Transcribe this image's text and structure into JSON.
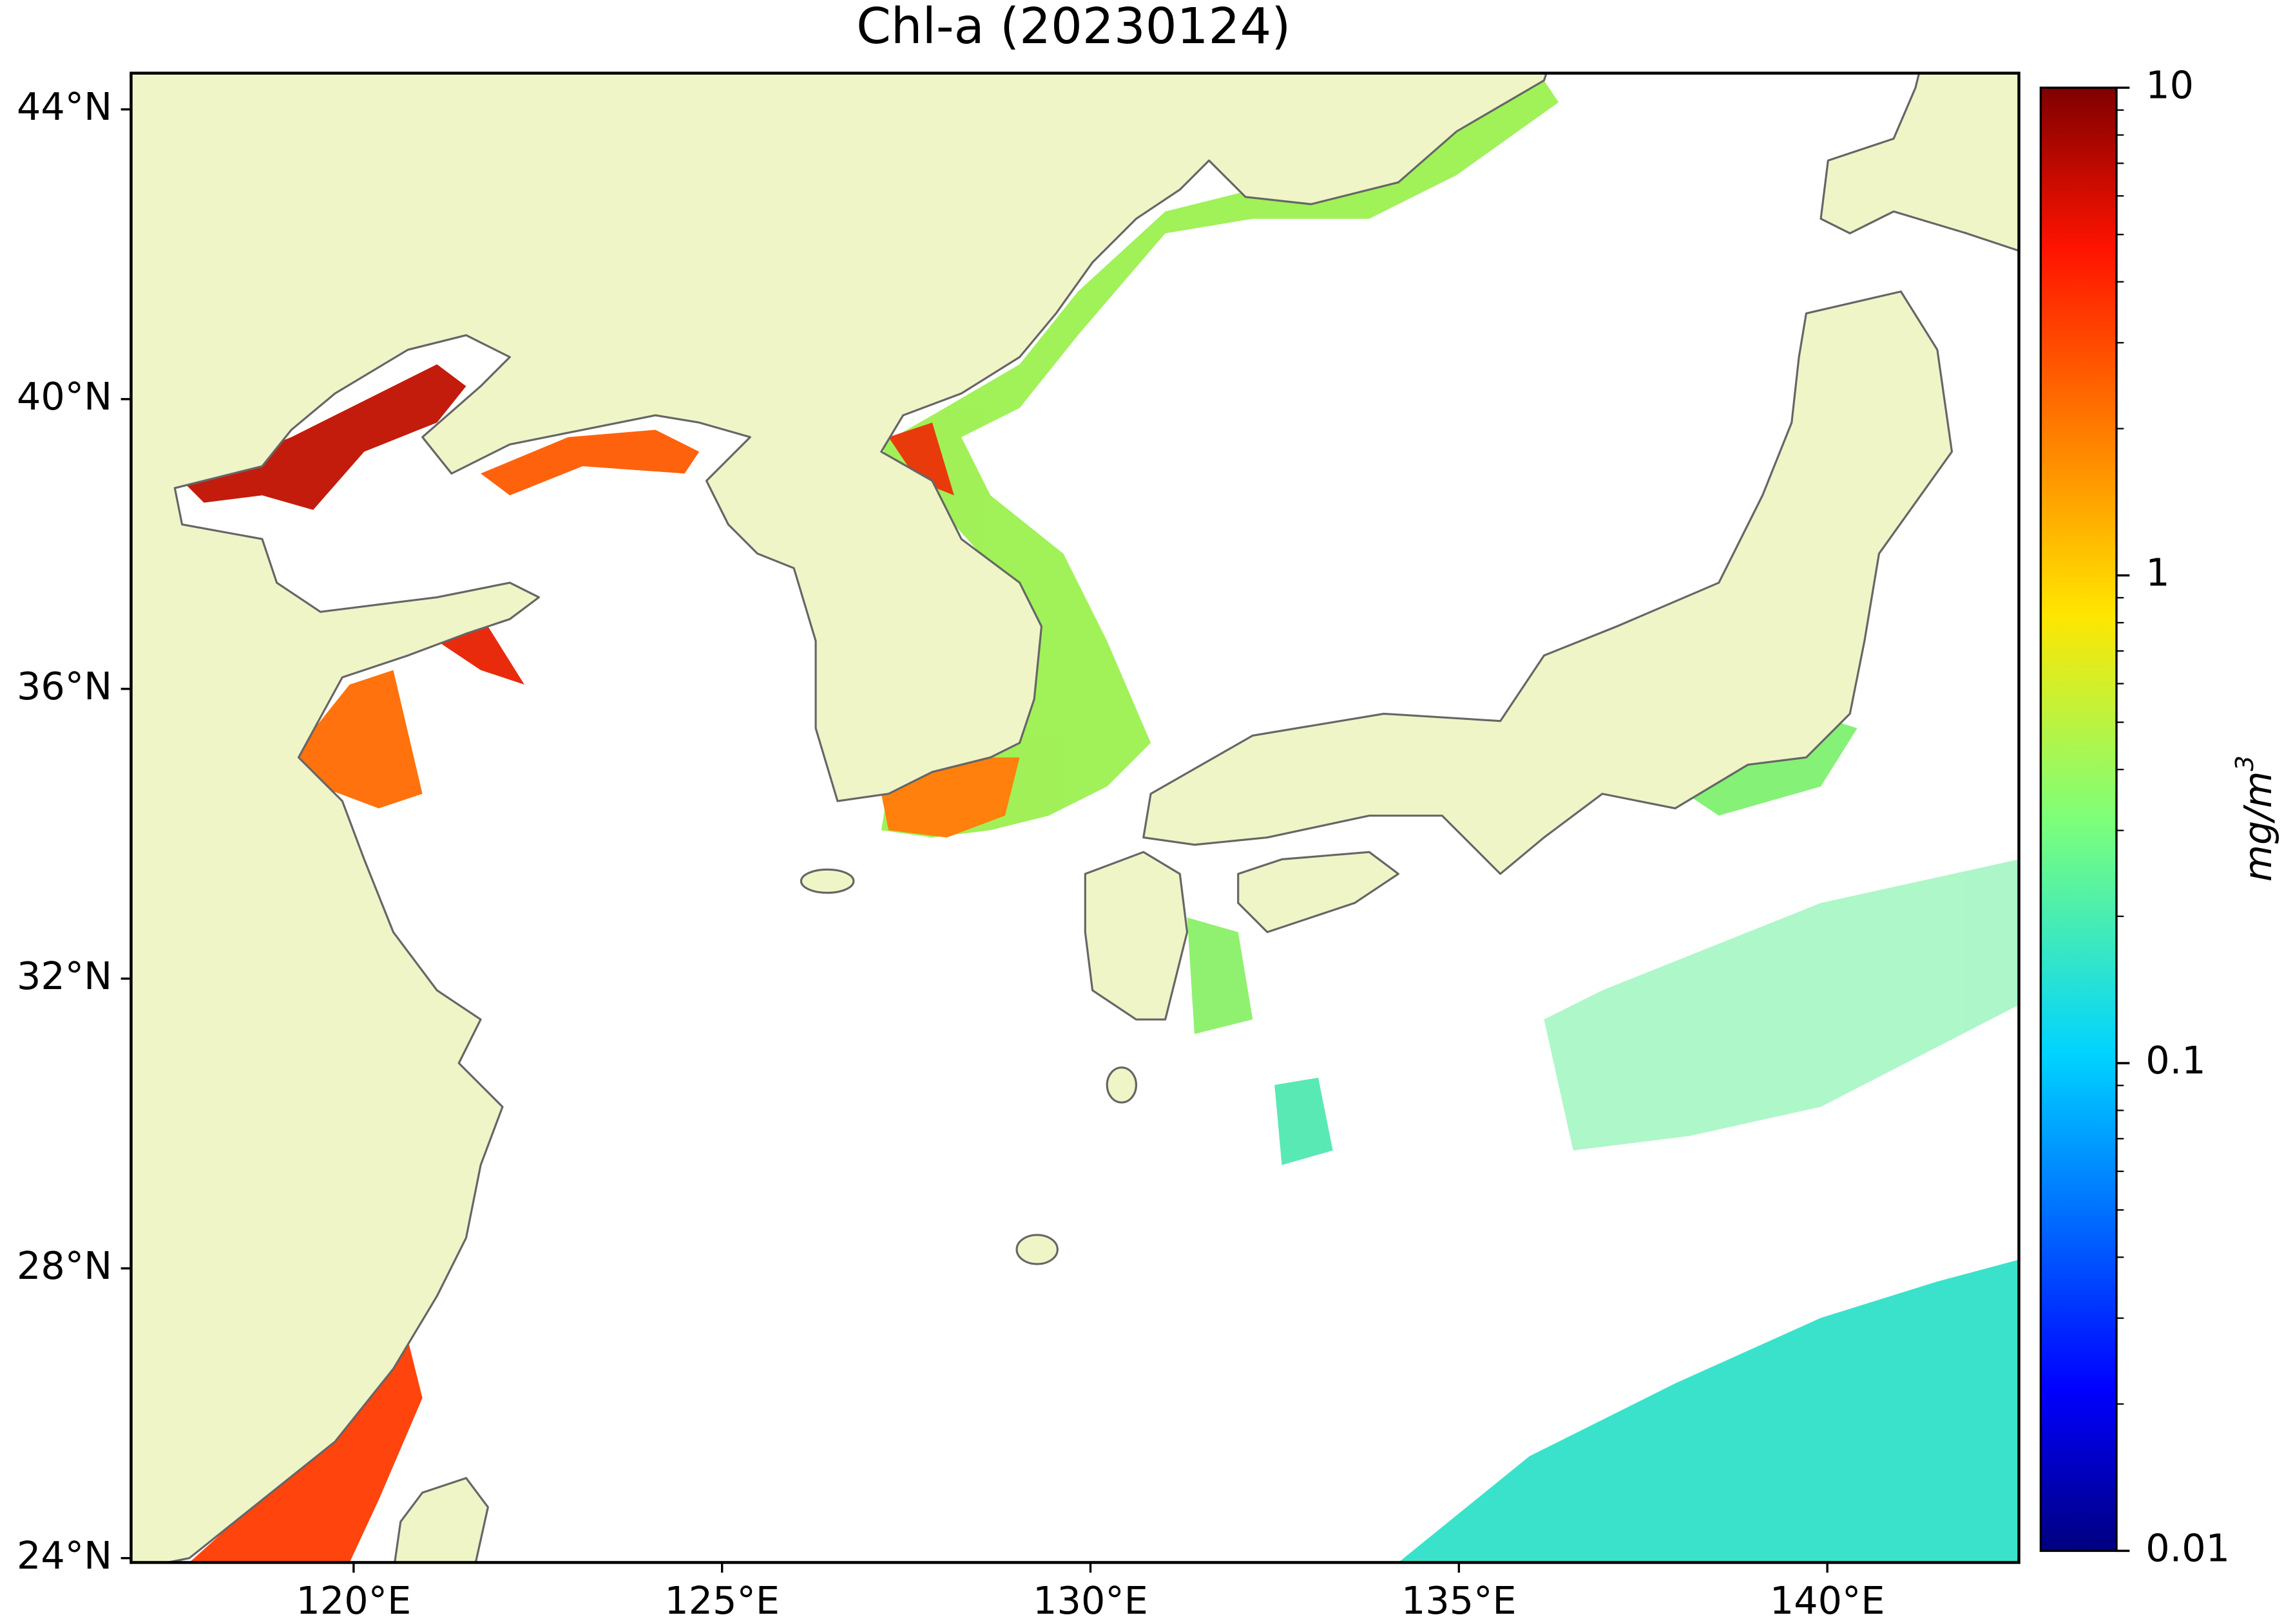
{
  "map": {
    "title": "Chl-a (20230124)",
    "lon_range": [
      116.98,
      142.6
    ],
    "lat_range": [
      23.94,
      44.5
    ],
    "lon_ticks": [
      {
        "value": 120,
        "label": "120°E"
      },
      {
        "value": 125,
        "label": "125°E"
      },
      {
        "value": 130,
        "label": "130°E"
      },
      {
        "value": 135,
        "label": "135°E"
      },
      {
        "value": 140,
        "label": "140°E"
      }
    ],
    "lat_ticks": [
      {
        "value": 24,
        "label": "24°N"
      },
      {
        "value": 28,
        "label": "28°N"
      },
      {
        "value": 32,
        "label": "32°N"
      },
      {
        "value": 36,
        "label": "36°N"
      },
      {
        "value": 40,
        "label": "40°N"
      },
      {
        "value": 44,
        "label": "44°N"
      }
    ],
    "colorbar": {
      "scale": "log",
      "colormap": "jet",
      "range": [
        0.01,
        10
      ],
      "ticks": [
        0.01,
        0.1,
        1,
        10
      ],
      "label": {
        "base": "mg/m",
        "exponent": "3"
      }
    }
  }
}
